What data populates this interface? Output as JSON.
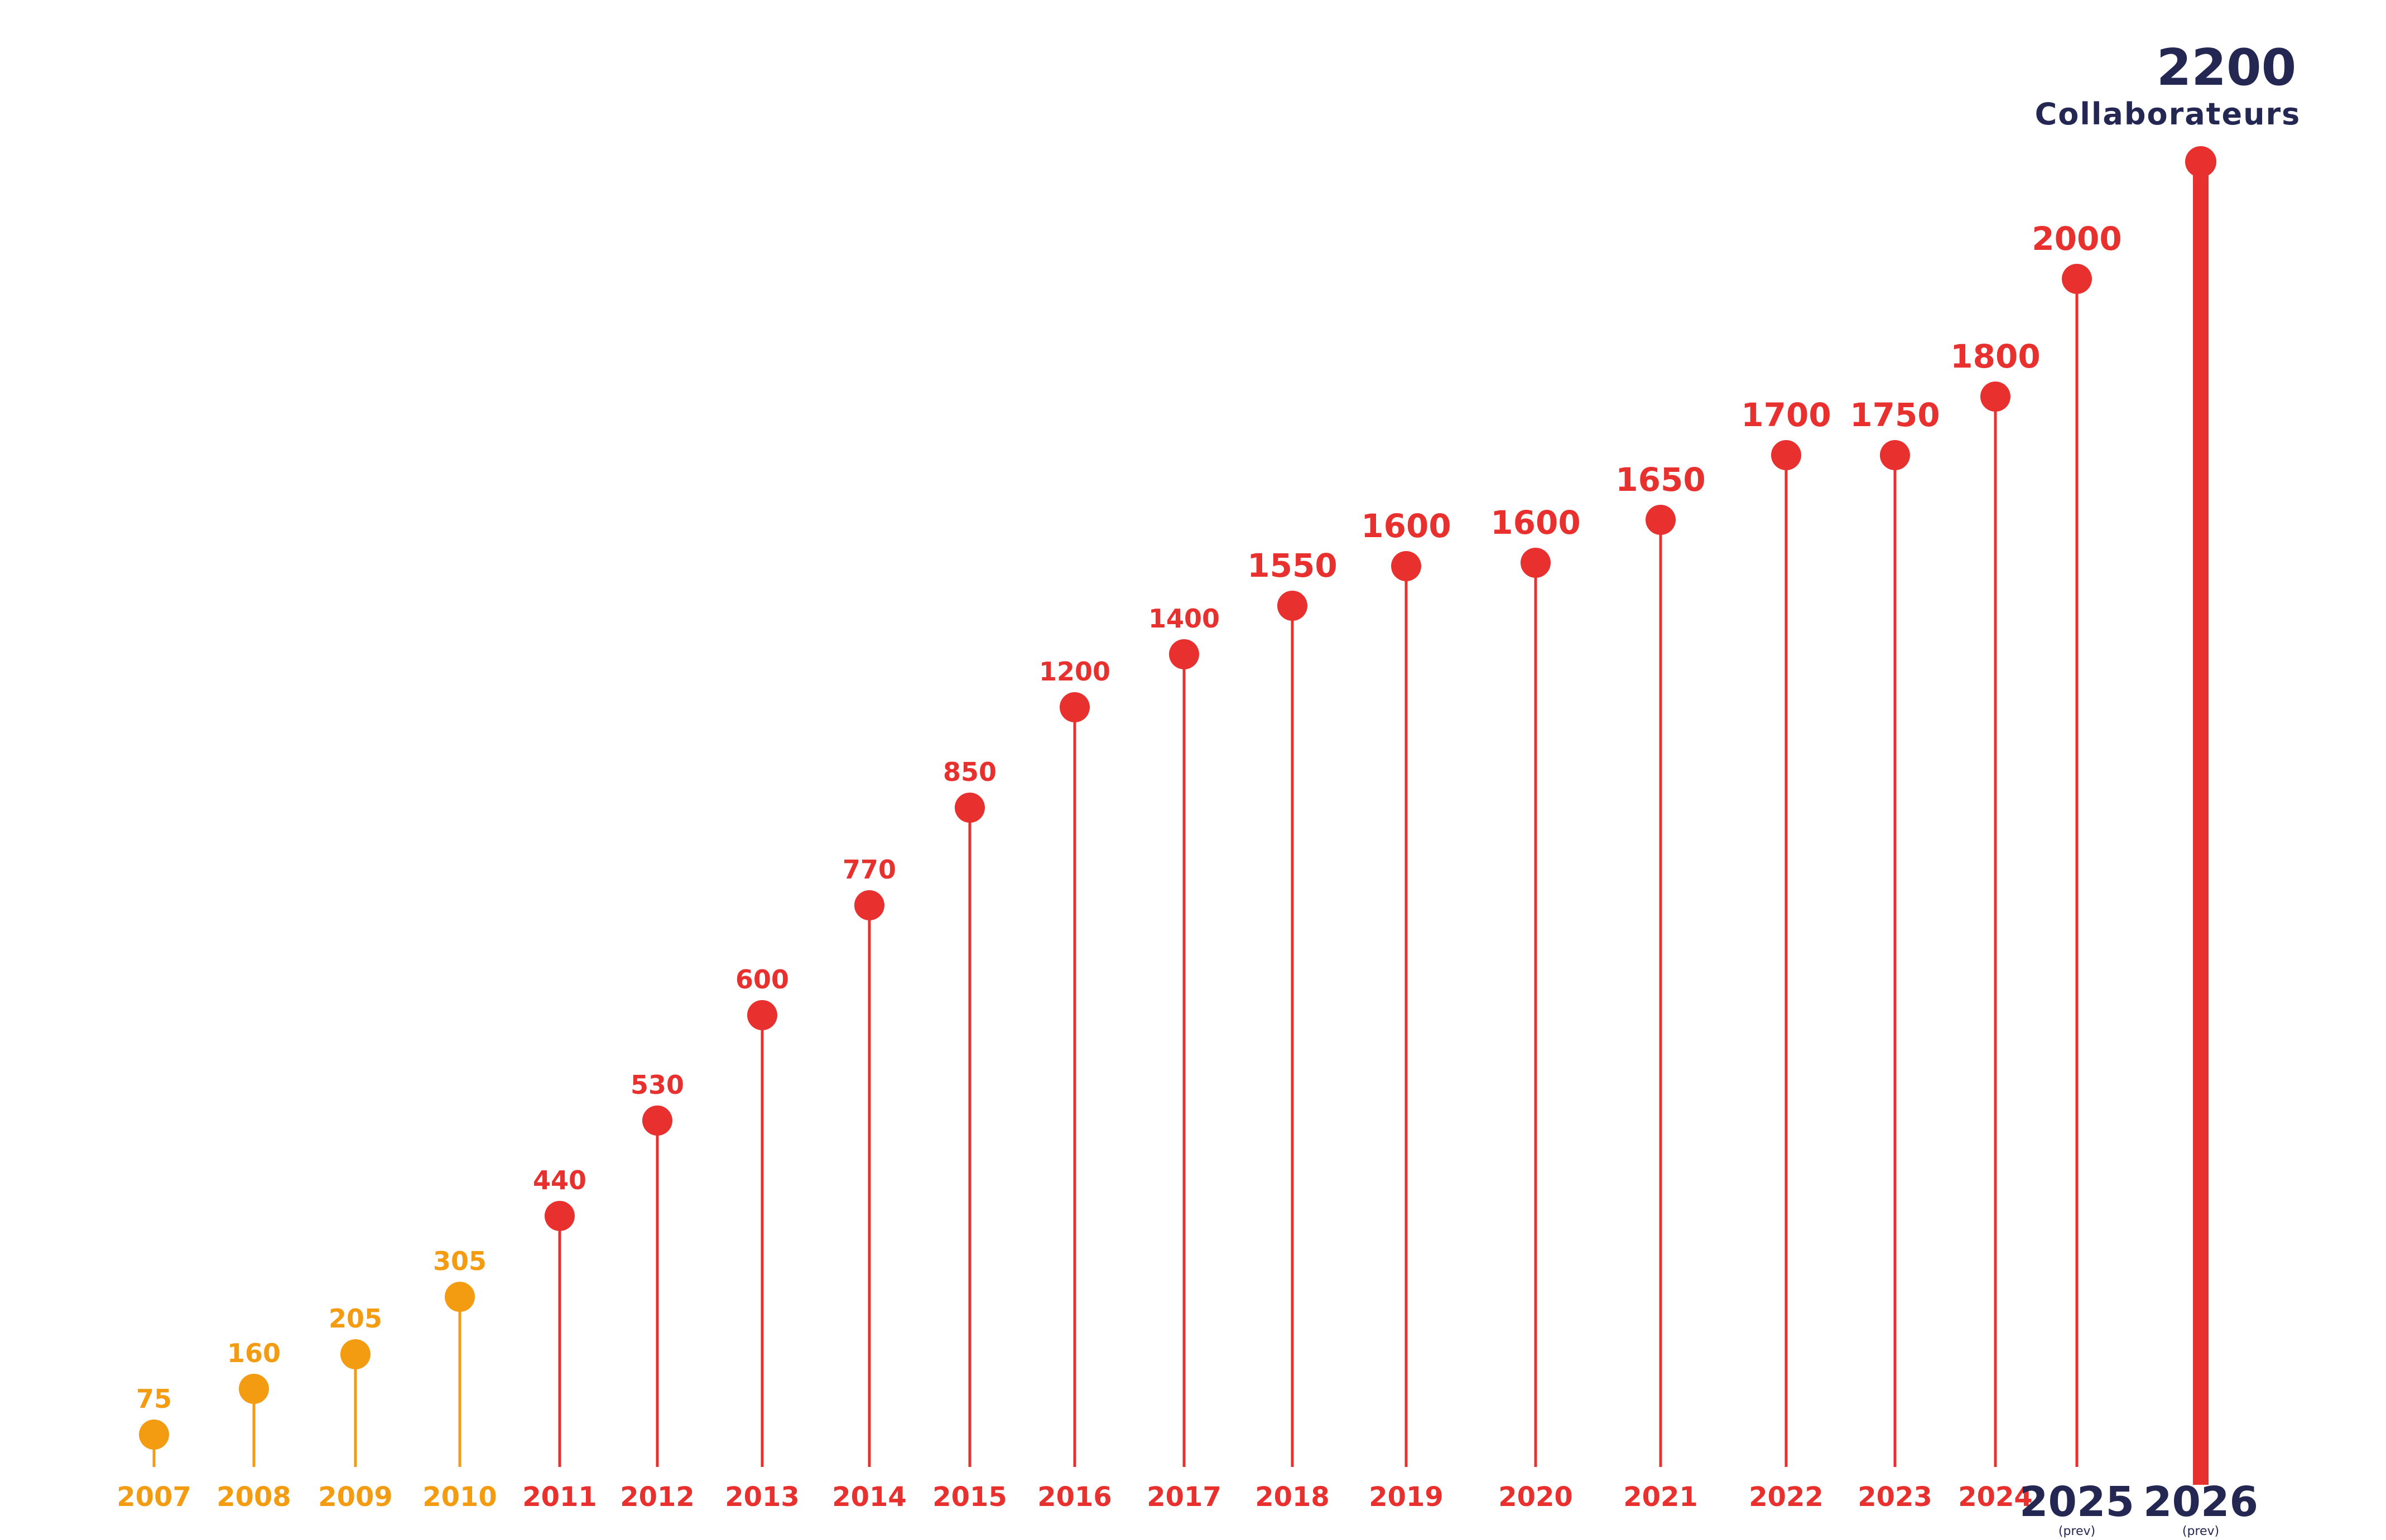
{
  "chart_data": {
    "type": "lollipop",
    "title": "",
    "xlabel": "",
    "ylabel": "",
    "grid": false,
    "legend": "none",
    "ylim": [
      0,
      2200
    ],
    "headline": {
      "value": "2200",
      "unit": "Collaborateurs"
    },
    "forecast_note": "(prev)",
    "colors": {
      "early": "#F39C12",
      "main": "#E8302E",
      "forecast_label": "#232752"
    },
    "points": [
      {
        "year": "2007",
        "value": 75,
        "label": "75",
        "group": "early"
      },
      {
        "year": "2008",
        "value": 160,
        "label": "160",
        "group": "early"
      },
      {
        "year": "2009",
        "value": 205,
        "label": "205",
        "group": "early"
      },
      {
        "year": "2010",
        "value": 305,
        "label": "305",
        "group": "early"
      },
      {
        "year": "2011",
        "value": 440,
        "label": "440",
        "group": "main"
      },
      {
        "year": "2012",
        "value": 530,
        "label": "530",
        "group": "main"
      },
      {
        "year": "2013",
        "value": 600,
        "label": "600",
        "group": "main"
      },
      {
        "year": "2014",
        "value": 770,
        "label": "770",
        "group": "main"
      },
      {
        "year": "2015",
        "value": 850,
        "label": "850",
        "group": "main"
      },
      {
        "year": "2016",
        "value": 1200,
        "label": "1200",
        "group": "main"
      },
      {
        "year": "2017",
        "value": 1400,
        "label": "1400",
        "group": "main"
      },
      {
        "year": "2018",
        "value": 1550,
        "label": "1550",
        "group": "main"
      },
      {
        "year": "2019",
        "value": 1600,
        "label": "1600",
        "group": "main"
      },
      {
        "year": "2020",
        "value": 1600,
        "label": "1600",
        "group": "main"
      },
      {
        "year": "2021",
        "value": 1650,
        "label": "1650",
        "group": "main"
      },
      {
        "year": "2022",
        "value": 1700,
        "label": "1700",
        "group": "main"
      },
      {
        "year": "2023",
        "value": 1750,
        "label": "1750",
        "group": "main"
      },
      {
        "year": "2024",
        "value": 1800,
        "label": "1800",
        "group": "main"
      },
      {
        "year": "2025",
        "value": 2000,
        "label": "2000",
        "group": "main",
        "forecast": true
      },
      {
        "year": "2026",
        "value": 2200,
        "label": "",
        "group": "main",
        "forecast": true
      }
    ]
  }
}
